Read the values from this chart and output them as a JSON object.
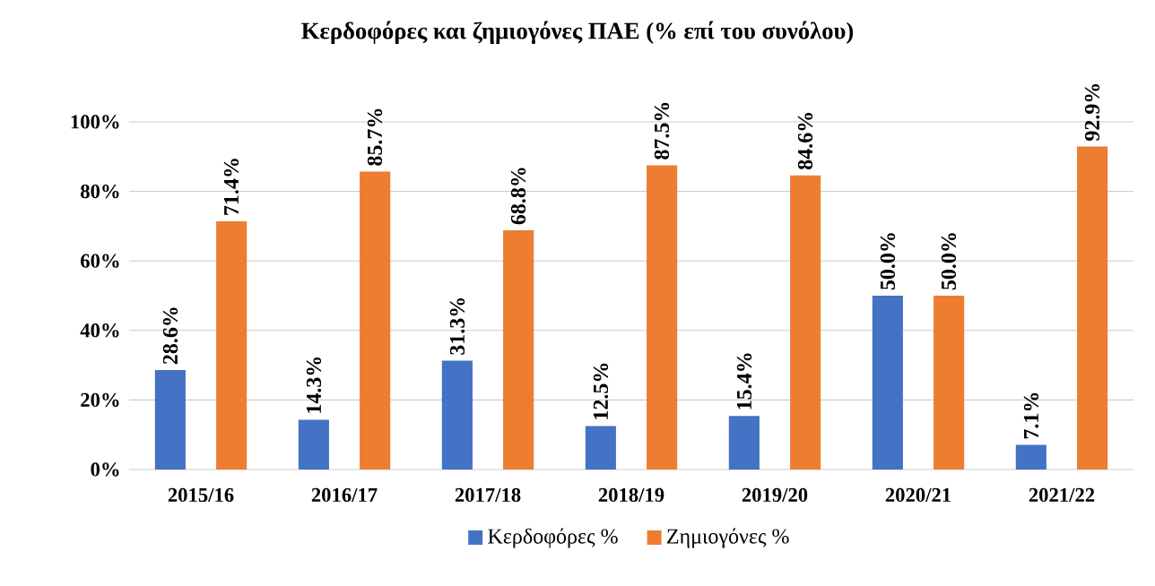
{
  "chart_data": {
    "type": "bar",
    "title": "Κερδοφόρες και ζημιογόνες ΠΑΕ (% επί του συνόλου)",
    "categories": [
      "2015/16",
      "2016/17",
      "2017/18",
      "2018/19",
      "2019/20",
      "2020/21",
      "2021/22"
    ],
    "series": [
      {
        "name": "Κερδοφόρες %",
        "color": "#4472c4",
        "values": [
          28.6,
          14.3,
          31.3,
          12.5,
          15.4,
          50.0,
          7.1
        ],
        "value_labels": [
          "28.6%",
          "14.3%",
          "31.3%",
          "12.5%",
          "15.4%",
          "50.0%",
          "7.1%"
        ]
      },
      {
        "name": "Ζημιογόνες %",
        "color": "#ed7d31",
        "values": [
          71.4,
          85.7,
          68.8,
          87.5,
          84.6,
          50.0,
          92.9
        ],
        "value_labels": [
          "71.4%",
          "85.7%",
          "68.8%",
          "87.5%",
          "84.6%",
          "50.0%",
          "92.9%"
        ]
      }
    ],
    "ylim": [
      0,
      100
    ],
    "yticks": [
      {
        "value": 0,
        "label": "0%"
      },
      {
        "value": 20,
        "label": "20%"
      },
      {
        "value": 40,
        "label": "40%"
      },
      {
        "value": 60,
        "label": "60%"
      },
      {
        "value": 80,
        "label": "80%"
      },
      {
        "value": 100,
        "label": "100%"
      }
    ],
    "grid": "y",
    "legend": "bottom"
  }
}
